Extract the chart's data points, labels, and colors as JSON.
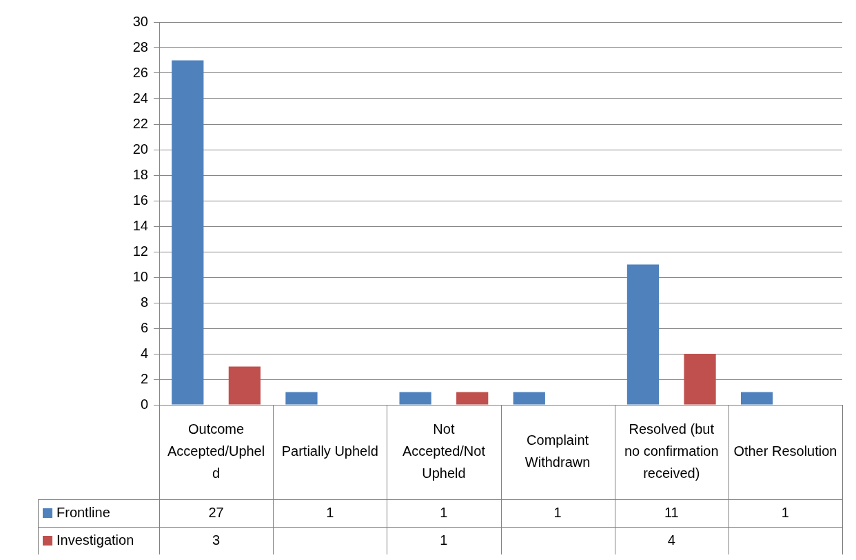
{
  "chart_data": {
    "type": "bar",
    "categories": [
      "Outcome Accepted/Upheld",
      "Partially Upheld",
      "Not Accepted/Not Upheld",
      "Complaint Withdrawn",
      "Resolved (but no confirmation received)",
      "Other Resolution"
    ],
    "series": [
      {
        "name": "Frontline",
        "color": "#4f81bd",
        "values": [
          27,
          1,
          1,
          1,
          11,
          1
        ]
      },
      {
        "name": "Investigation",
        "color": "#c0504d",
        "values": [
          3,
          null,
          1,
          null,
          4,
          null
        ]
      }
    ],
    "ylim": [
      0,
      30
    ],
    "yticks": [
      0,
      2,
      4,
      6,
      8,
      10,
      12,
      14,
      16,
      18,
      20,
      22,
      24,
      26,
      28,
      30
    ],
    "grid": "y",
    "legend": "bottom",
    "data_labels": true
  }
}
